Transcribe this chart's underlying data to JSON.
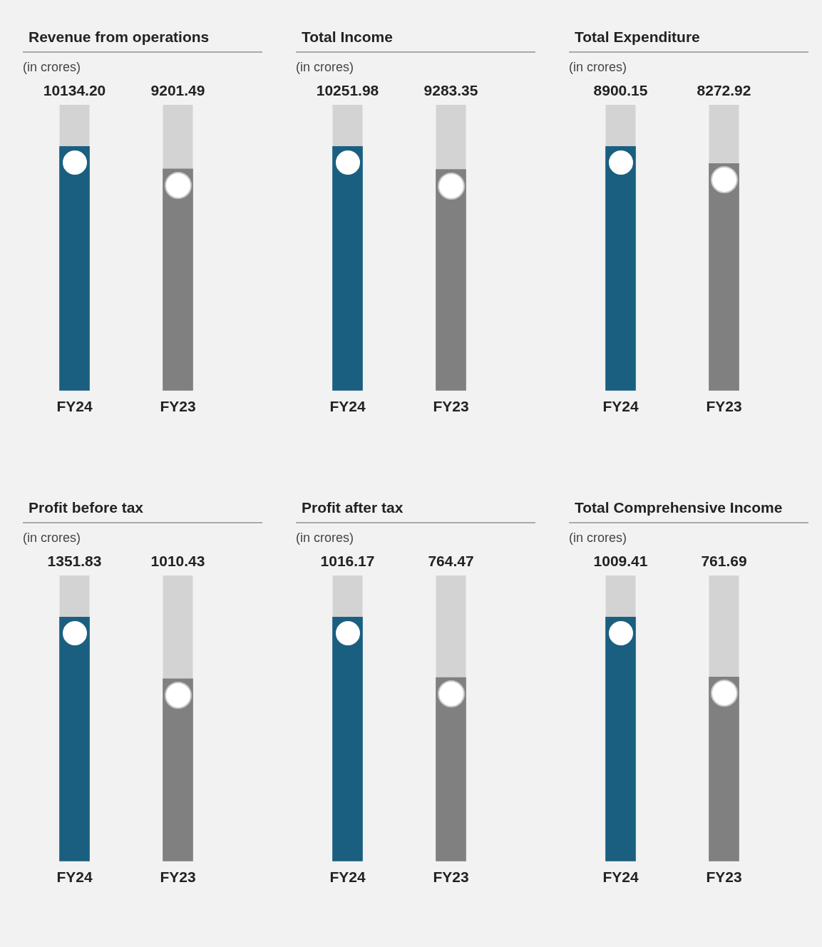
{
  "chart_data": [
    {
      "type": "bar",
      "title": "Revenue from operations",
      "subtitle": "(in crores)",
      "categories": [
        "FY24",
        "FY23"
      ],
      "values": [
        10134.2,
        9201.49
      ],
      "value_labels": [
        "10134.20",
        "9201.49"
      ],
      "colors": [
        "#1a5f80",
        "#808080"
      ]
    },
    {
      "type": "bar",
      "title": "Total Income",
      "subtitle": "(in crores)",
      "categories": [
        "FY24",
        "FY23"
      ],
      "values": [
        10251.98,
        9283.35
      ],
      "value_labels": [
        "10251.98",
        "9283.35"
      ],
      "colors": [
        "#1a5f80",
        "#808080"
      ]
    },
    {
      "type": "bar",
      "title": "Total Expenditure",
      "subtitle": "(in crores)",
      "categories": [
        "FY24",
        "FY23"
      ],
      "values": [
        8900.15,
        8272.92
      ],
      "value_labels": [
        "8900.15",
        "8272.92"
      ],
      "colors": [
        "#1a5f80",
        "#808080"
      ]
    },
    {
      "type": "bar",
      "title": "Profit before tax",
      "subtitle": "(in crores)",
      "categories": [
        "FY24",
        "FY23"
      ],
      "values": [
        1351.83,
        1010.43
      ],
      "value_labels": [
        "1351.83",
        "1010.43"
      ],
      "colors": [
        "#1a5f80",
        "#808080"
      ]
    },
    {
      "type": "bar",
      "title": "Profit after tax",
      "subtitle": "(in crores)",
      "categories": [
        "FY24",
        "FY23"
      ],
      "values": [
        1016.17,
        764.47
      ],
      "value_labels": [
        "1016.17",
        "764.47"
      ],
      "colors": [
        "#1a5f80",
        "#808080"
      ]
    },
    {
      "type": "bar",
      "title": "Total Comprehensive Income",
      "subtitle": "(in crores)",
      "categories": [
        "FY24",
        "FY23"
      ],
      "values": [
        1009.41,
        761.69
      ],
      "value_labels": [
        "1009.41",
        "761.69"
      ],
      "colors": [
        "#1a5f80",
        "#808080"
      ]
    }
  ]
}
